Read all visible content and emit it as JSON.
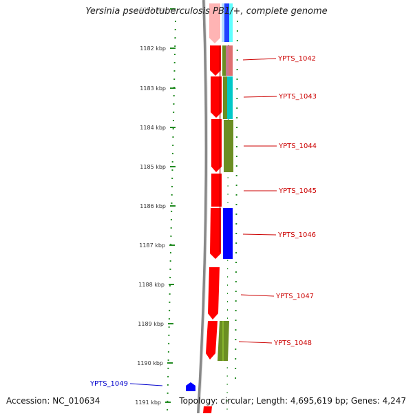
{
  "title": "Yersinia pseudotuberculosis PB1/+, complete genome",
  "accession": "Accession: NC_010634",
  "topology": "Topology: circular; Length: 4,695,619 bp; Genes: 4,247",
  "colors": {
    "backbone": "#888888",
    "ticks": "#228b22",
    "gene_red": "#ff0000",
    "label_red": "#cc0000",
    "label_blue": "#0000cc",
    "olive": "#6b8e23",
    "blue": "#0000ff",
    "cyan": "#00c8c8"
  },
  "kbp_ticks": [
    {
      "label": "1181 kbp"
    },
    {
      "label": "1182 kbp"
    },
    {
      "label": "1183 kbp"
    },
    {
      "label": "1184 kbp"
    },
    {
      "label": "1185 kbp"
    },
    {
      "label": "1186 kbp"
    },
    {
      "label": "1187 kbp"
    },
    {
      "label": "1188 kbp"
    },
    {
      "label": "1189 kbp"
    },
    {
      "label": "1190 kbp"
    },
    {
      "label": "1191 kbp"
    }
  ],
  "gene_labels": [
    {
      "label": "YPTS_1042",
      "color": "red"
    },
    {
      "label": "YPTS_1043",
      "color": "red"
    },
    {
      "label": "YPTS_1044",
      "color": "red"
    },
    {
      "label": "YPTS_1045",
      "color": "red"
    },
    {
      "label": "YPTS_1046",
      "color": "red"
    },
    {
      "label": "YPTS_1047",
      "color": "red"
    },
    {
      "label": "YPTS_1048",
      "color": "red"
    },
    {
      "label": "YPTS_1049",
      "color": "blue"
    }
  ]
}
